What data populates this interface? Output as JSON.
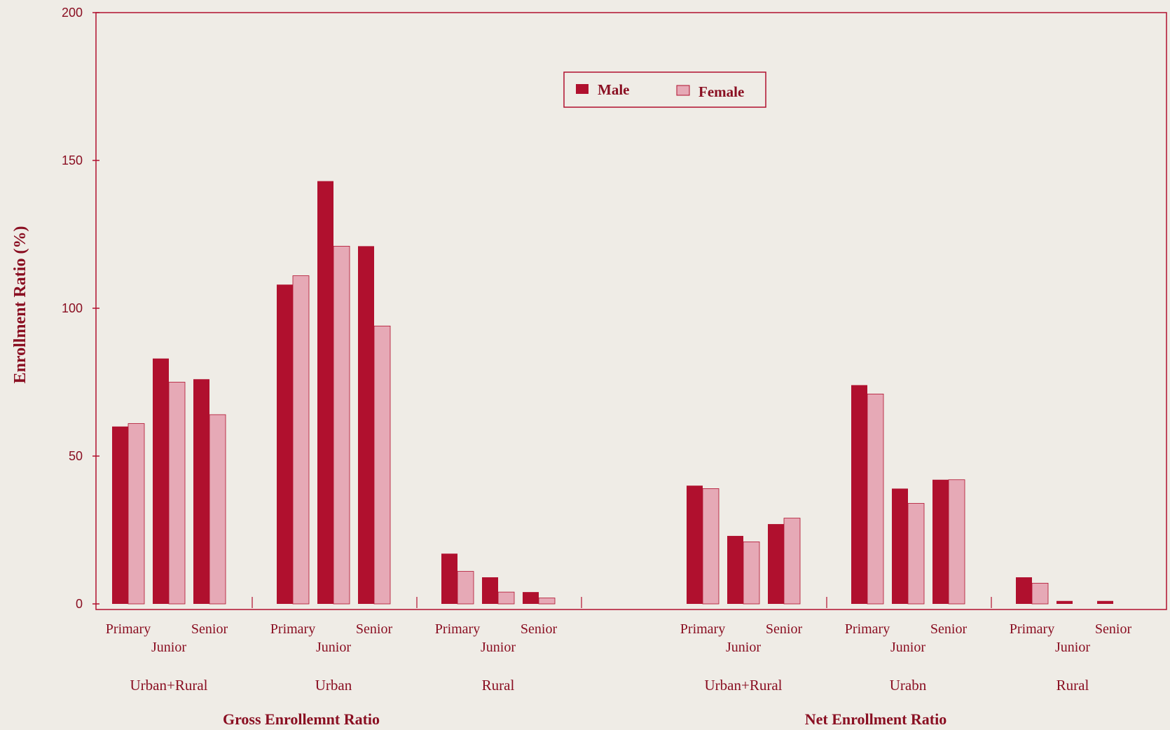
{
  "chart_data": {
    "type": "bar",
    "ylabel": "Enrollment Ratio (%)",
    "ylim": [
      0,
      200
    ],
    "yticks": [
      0,
      50,
      100,
      150,
      200
    ],
    "legend": {
      "placement": "top-center",
      "entries": [
        "Male",
        "Female"
      ]
    },
    "colors": {
      "Male": "#b0102e",
      "Female": "#e6a9b6",
      "axis": "#b0102e",
      "text": "#8a0f22"
    },
    "series": [
      {
        "name": "Male"
      },
      {
        "name": "Female"
      }
    ],
    "sections": [
      {
        "label": "Gross Enrollemnt Ratio",
        "groups": [
          {
            "label": "Urban+Rural",
            "levels": [
              "Primary",
              "Junior",
              "Senior"
            ],
            "male": [
              60,
              83,
              76
            ],
            "female": [
              61,
              75,
              64
            ]
          },
          {
            "label": "Urban",
            "levels": [
              "Primary",
              "Junior",
              "Senior"
            ],
            "male": [
              108,
              143,
              121
            ],
            "female": [
              111,
              121,
              94
            ]
          },
          {
            "label": "Rural",
            "levels": [
              "Primary",
              "Junior",
              "Senior"
            ],
            "male": [
              17,
              9,
              4
            ],
            "female": [
              11,
              4,
              2
            ]
          }
        ]
      },
      {
        "label": "Net Enrollment Ratio",
        "groups": [
          {
            "label": "Urban+Rural",
            "levels": [
              "Primary",
              "Junior",
              "Senior"
            ],
            "male": [
              40,
              23,
              27
            ],
            "female": [
              39,
              21,
              29
            ]
          },
          {
            "label": "Urabn",
            "levels": [
              "Primary",
              "Junior",
              "Senior"
            ],
            "male": [
              74,
              39,
              42
            ],
            "female": [
              71,
              34,
              42
            ]
          },
          {
            "label": "Rural",
            "levels": [
              "Primary",
              "Junior",
              "Senior"
            ],
            "male": [
              9,
              1,
              1
            ],
            "female": [
              7,
              0,
              0
            ]
          }
        ]
      }
    ]
  }
}
